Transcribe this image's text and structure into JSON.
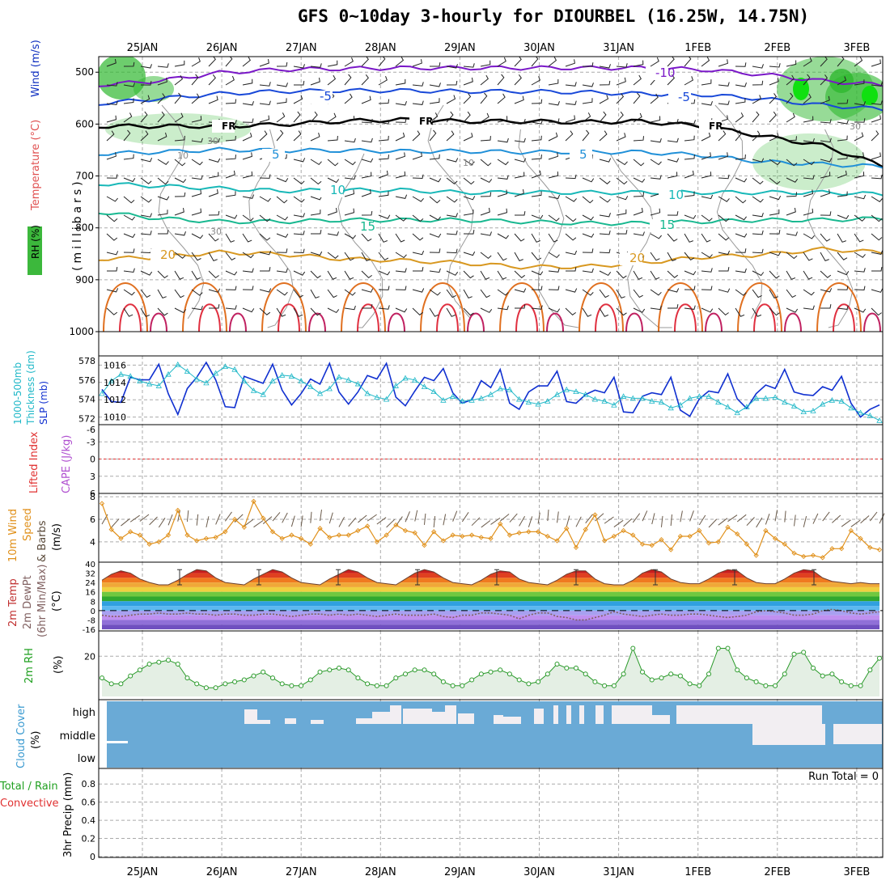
{
  "title": "GFS 0~10day 3-hourly for DIOURBEL (16.25W, 14.75N)",
  "colors": {
    "grid": "#aaaaaa",
    "axis": "#000000",
    "wind_label": "#0000cc",
    "temp_label": "#e03030",
    "rh_green": "#1fa01f",
    "slp_blue": "#1030d0",
    "thick_cyan": "#20b8c8",
    "cape_purple": "#b050d0",
    "li_red": "#e03030",
    "wind10_orange": "#e0901a",
    "cloud_blue": "#6aaad6",
    "cloud_white": "#f2eef2",
    "precip_green": "#20a020",
    "precip_red": "#e03030"
  },
  "chart_data": [
    {
      "panel": "upper-air",
      "type": "contour",
      "x_dates": [
        "25JAN",
        "26JAN",
        "27JAN",
        "28JAN",
        "29JAN",
        "30JAN",
        "31JAN",
        "1FEB",
        "2FEB",
        "3FEB"
      ],
      "ylabel": "(millibars)",
      "yticks": [
        500,
        600,
        700,
        800,
        900,
        1000
      ],
      "left_labels": [
        "RH (%)",
        "Temperature (°C)",
        "Wind (m/s)"
      ],
      "isotherm_labels": [
        {
          "text": "-10",
          "color": "#7a18c8"
        },
        {
          "text": "-5",
          "color": "#1848d8"
        },
        {
          "text": "-5",
          "color": "#1848d8"
        },
        {
          "text": "FR",
          "color": "#000000"
        },
        {
          "text": "FR",
          "color": "#000000"
        },
        {
          "text": "FR",
          "color": "#000000"
        },
        {
          "text": "5",
          "color": "#2090d8"
        },
        {
          "text": "5",
          "color": "#2090d8"
        },
        {
          "text": "10",
          "color": "#18b8b8"
        },
        {
          "text": "10",
          "color": "#18b8b8"
        },
        {
          "text": "15",
          "color": "#18b890"
        },
        {
          "text": "15",
          "color": "#18b890"
        },
        {
          "text": "20",
          "color": "#d89820"
        },
        {
          "text": "20",
          "color": "#d89820"
        }
      ],
      "rh_labels": [
        "30",
        "10",
        "10",
        "30",
        "30"
      ]
    },
    {
      "panel": "slp-thickness",
      "type": "line",
      "left_labels": [
        "1000-500mb",
        "Thickness (dm)",
        "SLP (mb)"
      ],
      "y_left_ticks": [
        "578",
        "576",
        "574",
        "572"
      ],
      "y_right_ticks": [
        "1016",
        "1014",
        "1012",
        "1010"
      ],
      "series": [
        {
          "name": "SLP (mb)",
          "color": "#1030d0",
          "values": [
            1013.2,
            1011.8,
            1011.7,
            1014.6,
            1014.3,
            1014.3,
            1016.1,
            1012.7,
            1010.3,
            1013.3,
            1014.6,
            1016.3,
            1014.3,
            1011.2,
            1011.1,
            1014.7,
            1014.3,
            1013.9,
            1016.1,
            1013.1,
            1011.4,
            1012.7,
            1014.4,
            1013.8,
            1016.2,
            1012.9,
            1011.5,
            1012.9,
            1014.8,
            1014.4,
            1016.2,
            1012.3,
            1011.3,
            1013.0,
            1014.6,
            1014.2,
            1015.6,
            1012.8,
            1011.6,
            1012.0,
            1014.2,
            1013.4,
            1015.5,
            1011.6,
            1010.9,
            1012.9,
            1013.6,
            1013.6,
            1015.3,
            1011.8,
            1011.6,
            1012.6,
            1013.1,
            1012.8,
            1014.6,
            1010.6,
            1010.5,
            1012.4,
            1012.8,
            1012.6,
            1014.6,
            1010.8,
            1010.1,
            1012.1,
            1013.0,
            1012.8,
            1015.0,
            1012.1,
            1011.0,
            1012.7,
            1013.7,
            1013.3,
            1015.5,
            1012.9,
            1012.6,
            1012.5,
            1013.5,
            1013.1,
            1014.7,
            1011.6,
            1010.0,
            1010.9,
            1011.4
          ]
        },
        {
          "name": "1000-500mb Thickness (dm)",
          "color": "#20b8c8",
          "values": [
            574.6,
            575.9,
            576.6,
            576.4,
            575.9,
            575.6,
            575.4,
            576.6,
            577.6,
            576.9,
            576.1,
            575.7,
            576.7,
            577.4,
            577.1,
            575.9,
            574.9,
            574.5,
            575.9,
            576.5,
            576.4,
            575.9,
            575.3,
            574.6,
            575.1,
            576.3,
            576.0,
            575.6,
            574.6,
            574.2,
            574.0,
            575.4,
            576.2,
            576.0,
            575.3,
            574.8,
            573.9,
            574.3,
            573.8,
            573.9,
            574.1,
            574.5,
            575.1,
            575.0,
            574.0,
            573.7,
            573.5,
            573.8,
            574.5,
            575.0,
            574.8,
            574.5,
            574.0,
            573.8,
            573.4,
            574.3,
            574.1,
            574.1,
            573.8,
            573.7,
            573.1,
            573.4,
            574.1,
            574.3,
            574.3,
            573.7,
            573.2,
            572.6,
            573.2,
            574.1,
            574.1,
            574.2,
            573.7,
            573.3,
            572.7,
            572.8,
            573.5,
            573.9,
            573.8,
            573.1,
            572.6,
            572.3,
            571.8
          ]
        }
      ]
    },
    {
      "panel": "cape-li",
      "type": "line",
      "left_labels": [
        "Lifted Index",
        "CAPE (J/kg)"
      ],
      "y_left_ticks": [
        "-6",
        "-3",
        "0",
        "3",
        "6"
      ],
      "series": [
        {
          "name": "Lifted Index",
          "color": "#e03030",
          "values": [
            0
          ]
        }
      ]
    },
    {
      "panel": "wind10",
      "type": "line",
      "left_labels": [
        "10m Wind",
        "Speed",
        "& Barbs",
        "(m/s)"
      ],
      "yticks": [
        4,
        6,
        8
      ],
      "ylim": [
        2.2,
        8.3
      ],
      "series": [
        {
          "name": "10m Wind Speed",
          "color": "#e0901a",
          "values": [
            7.4,
            5.1,
            4.3,
            4.9,
            4.6,
            3.8,
            4.0,
            4.6,
            6.8,
            4.6,
            4.1,
            4.3,
            4.4,
            4.9,
            6.0,
            5.3,
            7.6,
            6.1,
            4.9,
            4.3,
            4.6,
            4.3,
            3.8,
            5.2,
            4.4,
            4.6,
            4.6,
            5.0,
            5.4,
            4.0,
            4.6,
            5.5,
            5.0,
            4.8,
            3.7,
            4.9,
            4.1,
            4.6,
            4.5,
            4.6,
            4.4,
            4.3,
            5.6,
            4.6,
            4.8,
            4.9,
            4.9,
            4.5,
            4.1,
            5.2,
            3.5,
            5.1,
            6.4,
            4.1,
            4.5,
            5.0,
            4.6,
            3.8,
            3.7,
            4.2,
            3.3,
            4.5,
            4.5,
            5.0,
            3.9,
            4.0,
            5.3,
            4.7,
            3.8,
            2.8,
            5.0,
            4.3,
            3.8,
            3.0,
            2.7,
            2.8,
            2.6,
            3.4,
            3.4,
            5.0,
            4.3,
            3.5,
            3.3
          ]
        }
      ]
    },
    {
      "panel": "temp2m",
      "type": "area",
      "left_labels": [
        "2m Temp",
        "2m DewPt",
        "(6hr Min/Max)",
        "(°C)"
      ],
      "yticks": [
        "40",
        "32",
        "24",
        "16",
        "8",
        "0",
        "-8",
        "-16"
      ],
      "ylim": [
        -16,
        40
      ],
      "series": [
        {
          "name": "2m Temp",
          "color": "#d05030",
          "values": [
            26,
            31,
            34,
            32,
            27,
            24,
            22,
            22,
            26,
            31,
            35,
            34,
            28,
            24,
            23,
            22,
            27,
            31,
            35,
            33,
            28,
            24,
            23,
            22,
            27,
            31,
            35,
            33,
            28,
            24,
            23,
            22,
            27,
            32,
            35,
            33,
            28,
            24,
            23,
            22,
            26,
            31,
            34,
            33,
            27,
            24,
            23,
            22,
            26,
            31,
            34,
            34,
            27,
            23,
            22,
            22,
            26,
            32,
            35,
            33,
            27,
            24,
            23,
            23,
            27,
            32,
            35,
            34,
            28,
            24,
            23,
            23,
            27,
            32,
            35,
            34,
            28,
            25,
            24,
            23,
            24,
            23,
            23
          ]
        },
        {
          "name": "2m DewPt",
          "color": "#806060",
          "values": [
            -4,
            -5,
            -5,
            -4,
            -3,
            -3,
            -2,
            -3,
            -3,
            -2,
            -3,
            -3,
            -4,
            -3,
            -3,
            -4,
            -4,
            -3,
            -3,
            -4,
            -5,
            -4,
            -3,
            -3,
            -4,
            -3,
            -4,
            -3,
            -4,
            -5,
            -4,
            -3,
            -4,
            -4,
            -4,
            -3,
            -5,
            -6,
            -4,
            -4,
            -2,
            -2,
            -3,
            -4,
            -7,
            -4,
            -2,
            -2,
            -5,
            -6,
            -8,
            -8,
            -6,
            -4,
            -1,
            -3,
            -4,
            -5,
            -4,
            -3,
            -4,
            -4,
            -3,
            -3,
            -4,
            -5,
            -6,
            -5,
            -4,
            -1,
            0,
            -1,
            -2,
            -4,
            -4,
            -3,
            0,
            1,
            0,
            -2,
            -3,
            -2,
            -1
          ]
        }
      ]
    },
    {
      "panel": "rh2m",
      "type": "area",
      "left_labels": [
        "2m RH",
        "(%)"
      ],
      "yticks": [
        20
      ],
      "ylim": [
        0,
        32
      ],
      "series": [
        {
          "name": "2m RH",
          "color": "#2a9a2a",
          "values": [
            9,
            6,
            6,
            10,
            13,
            16,
            17,
            18,
            16,
            9,
            6,
            4,
            4,
            6,
            7,
            8,
            10,
            12,
            9,
            6,
            5,
            5,
            8,
            12,
            13,
            14,
            13,
            9,
            6,
            5,
            5,
            9,
            11,
            13,
            13,
            11,
            7,
            5,
            5,
            8,
            11,
            12,
            13,
            11,
            8,
            6,
            7,
            11,
            16,
            14,
            14,
            11,
            7,
            5,
            5,
            11,
            24,
            12,
            8,
            9,
            11,
            10,
            6,
            5,
            11,
            24,
            24,
            13,
            9,
            7,
            5,
            5,
            11,
            21,
            22,
            14,
            10,
            11,
            7,
            5,
            5,
            13,
            19
          ]
        }
      ]
    },
    {
      "panel": "cloud",
      "type": "bar",
      "left_labels": [
        "Cloud Cover",
        "(%)"
      ],
      "yticks": [
        "high",
        "middle",
        "low"
      ],
      "series": [
        {
          "name": "high",
          "color": "#6aaad6"
        },
        {
          "name": "middle",
          "color": "#6aaad6"
        },
        {
          "name": "low",
          "color": "#6aaad6"
        }
      ]
    },
    {
      "panel": "precip",
      "type": "bar",
      "left_labels": [
        "Total / Rain",
        "Convective",
        "3hr Precip (mm)"
      ],
      "yticks": [
        "0.8",
        "0.6",
        "0.4",
        "0.2",
        "0"
      ],
      "annotation": "Run Total = 0",
      "series": [
        {
          "name": "Total / Rain",
          "color": "#20a020",
          "values": [
            0
          ]
        },
        {
          "name": "Convective",
          "color": "#e03030",
          "values": [
            0
          ]
        }
      ]
    }
  ]
}
